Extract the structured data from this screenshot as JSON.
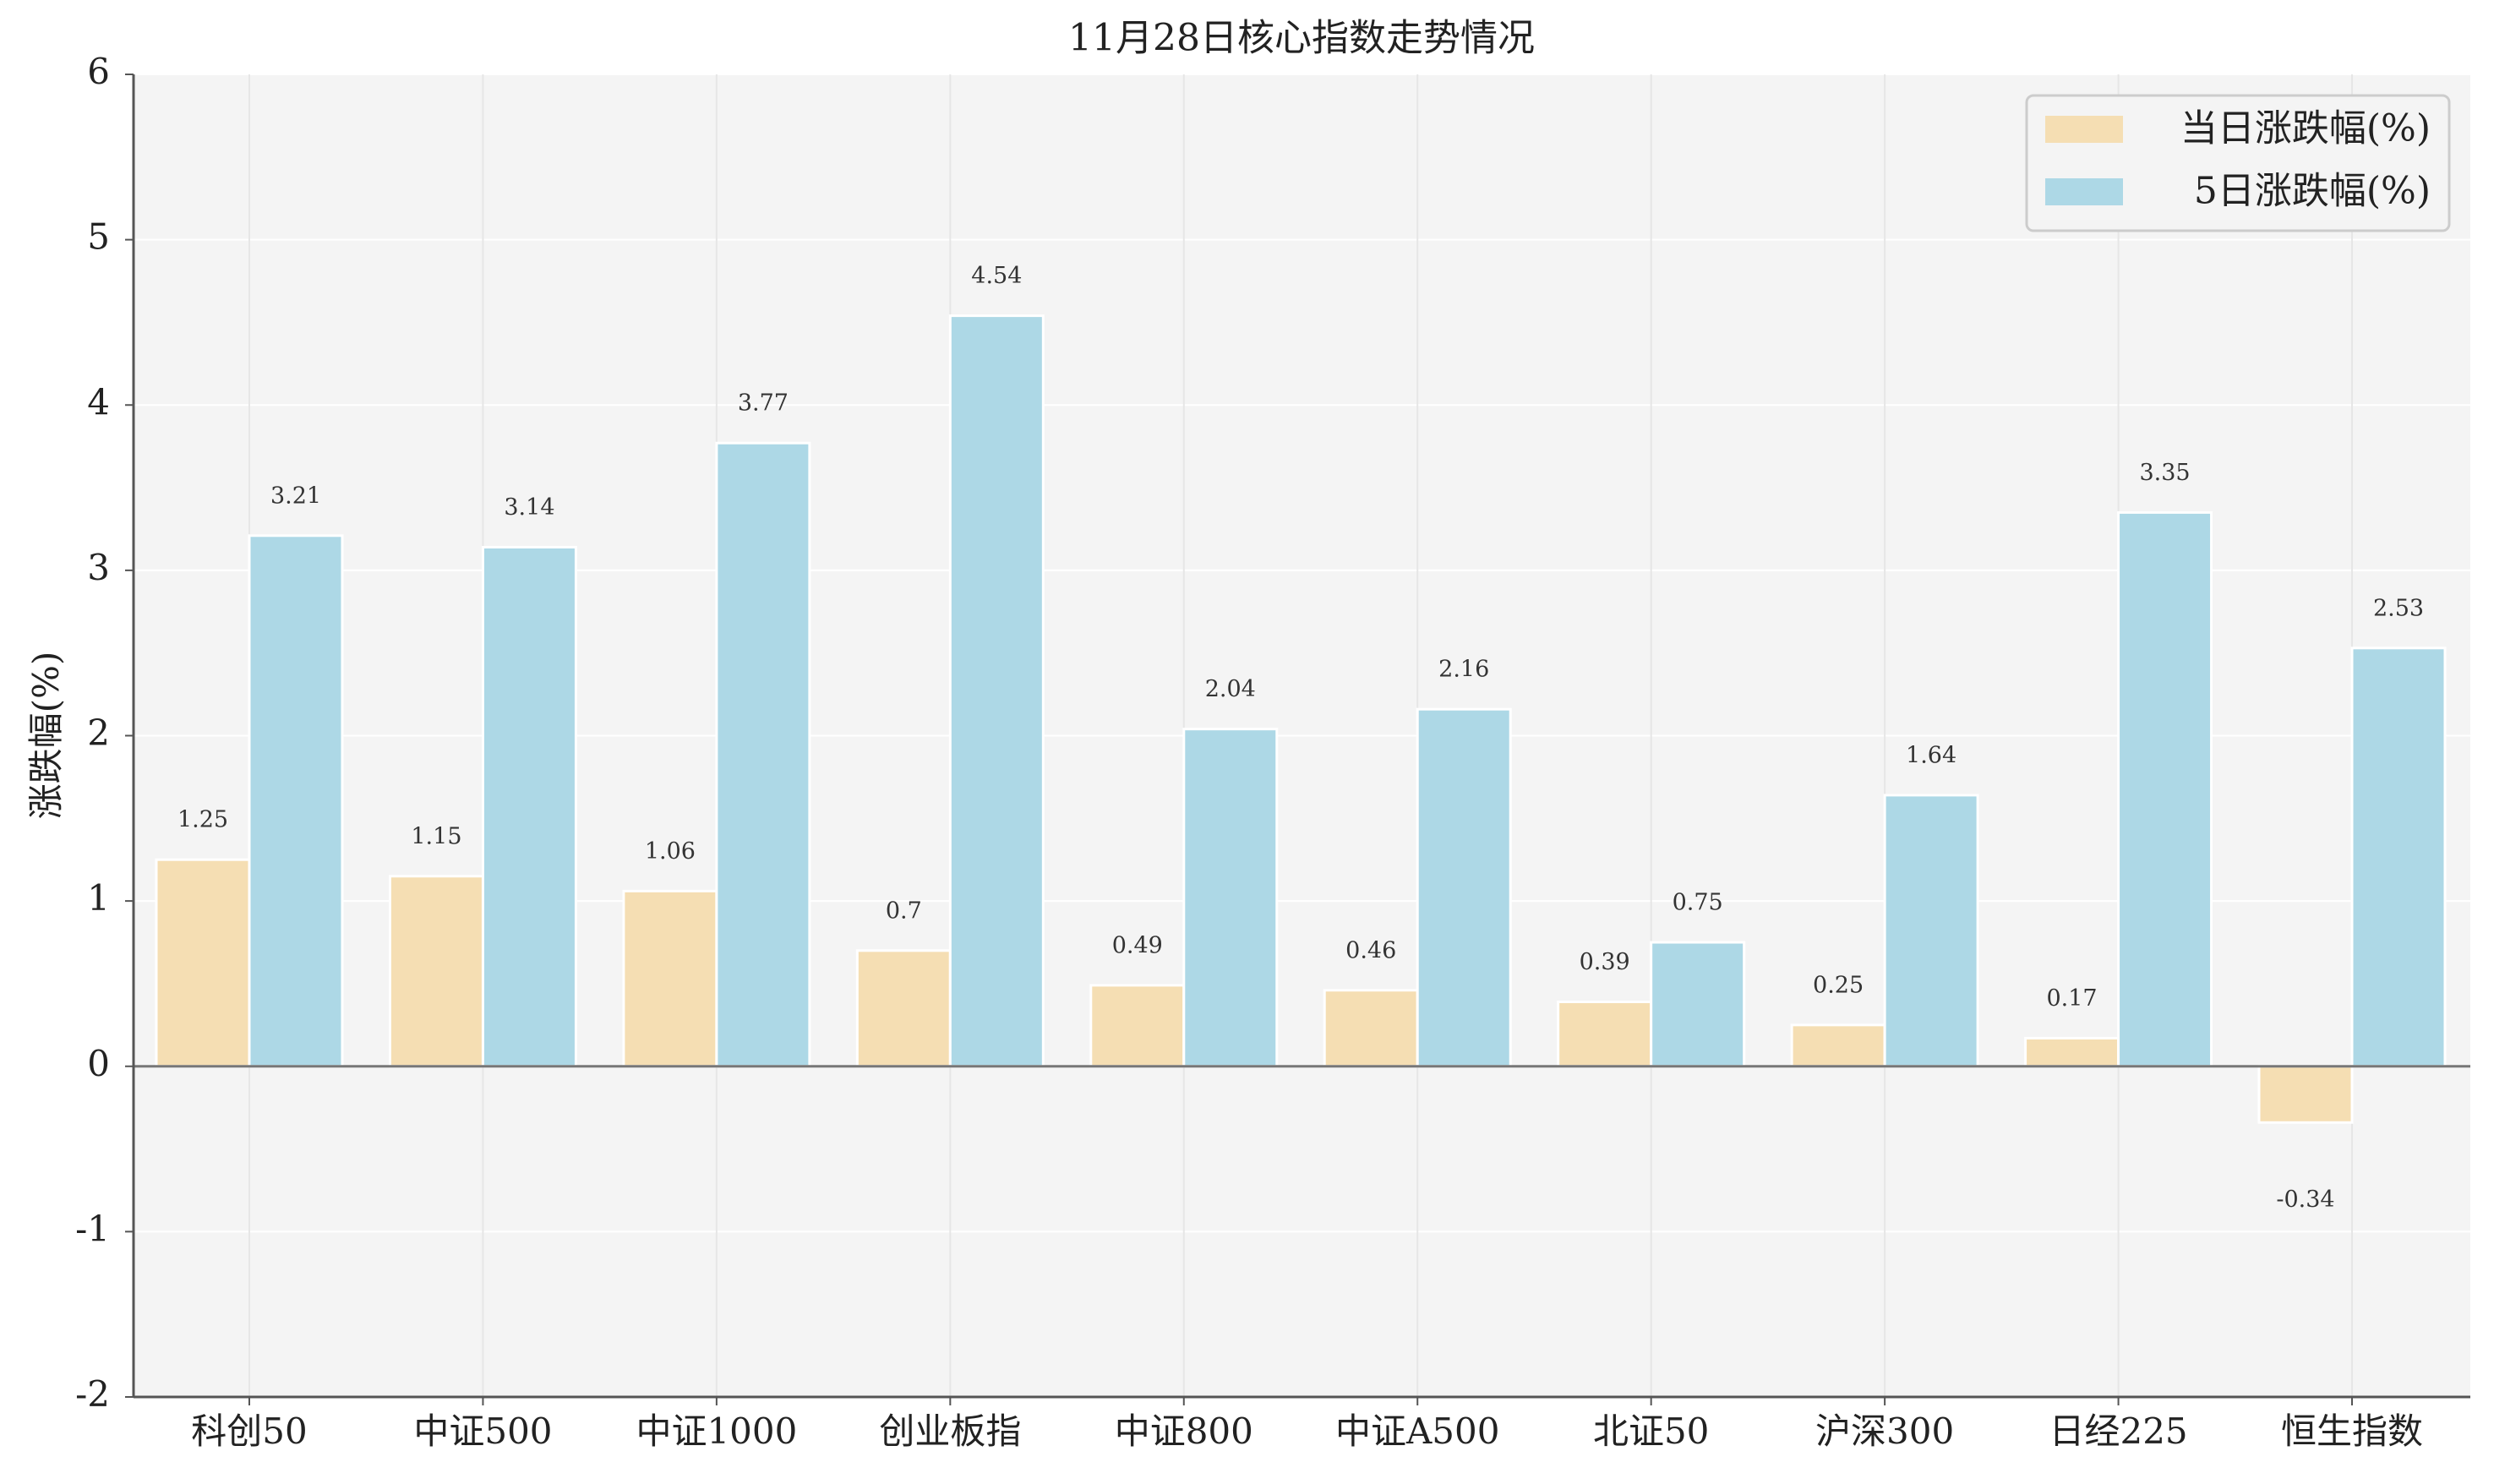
{
  "chart_data": {
    "type": "bar",
    "title": "11月28日核心指数走势情况",
    "xlabel": "",
    "ylabel": "涨跌幅(%)",
    "ylim": [
      -2,
      6
    ],
    "yticks": [
      "-2",
      "-1",
      "0",
      "1",
      "2",
      "3",
      "4",
      "5",
      "6"
    ],
    "categories": [
      "科创50",
      "中证500",
      "中证1000",
      "创业板指",
      "中证800",
      "中证A500",
      "北证50",
      "沪深300",
      "日经225",
      "恒生指数"
    ],
    "series": [
      {
        "name": "当日涨跌幅(%)",
        "color": "#F5DEB3",
        "values": [
          1.25,
          1.15,
          1.06,
          0.7,
          0.49,
          0.46,
          0.39,
          0.25,
          0.17,
          -0.34
        ],
        "labels": [
          "1.25",
          "1.15",
          "1.06",
          "0.7",
          "0.49",
          "0.46",
          "0.39",
          "0.25",
          "0.17",
          "-0.34"
        ]
      },
      {
        "name": "5日涨跌幅(%)",
        "color": "#ADD8E6",
        "values": [
          3.21,
          3.14,
          3.77,
          4.54,
          2.04,
          2.16,
          0.75,
          1.64,
          3.35,
          2.53
        ],
        "labels": [
          "3.21",
          "3.14",
          "3.77",
          "4.54",
          "2.04",
          "2.16",
          "0.75",
          "1.64",
          "3.35",
          "2.53"
        ]
      }
    ],
    "legend_position": "top-right",
    "grid": true,
    "background_color": "#F4F4F4"
  }
}
